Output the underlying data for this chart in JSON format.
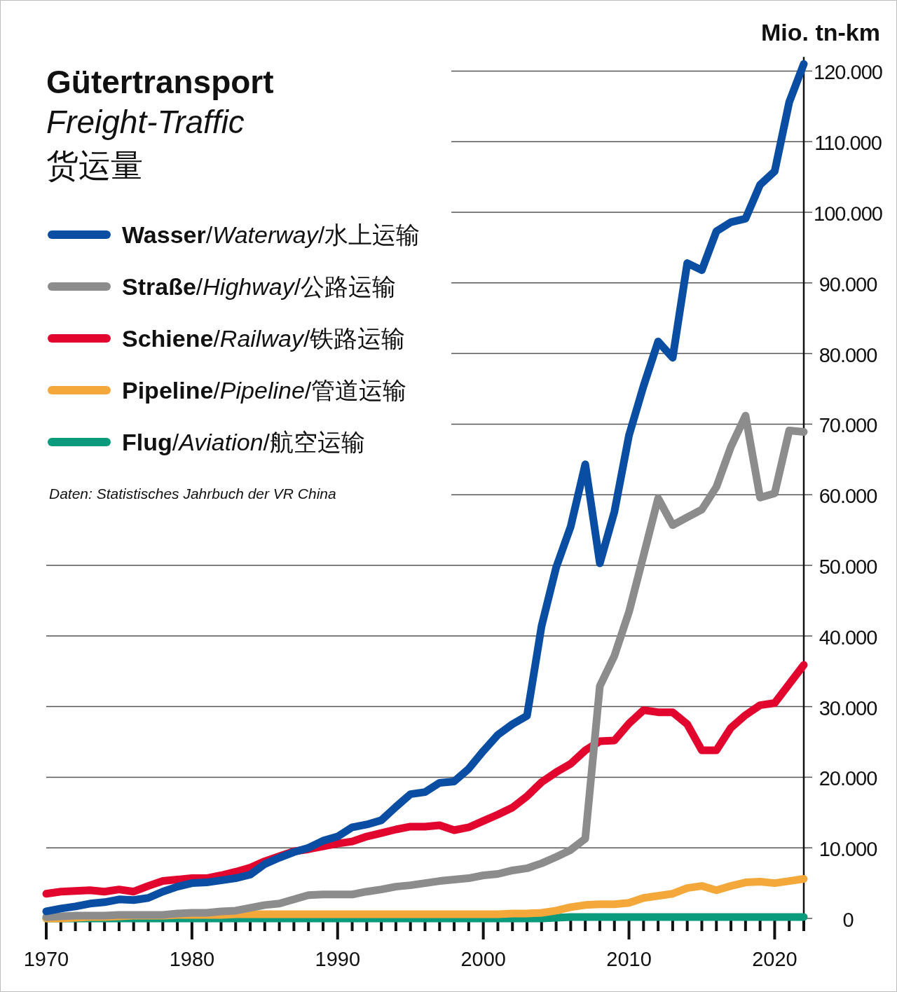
{
  "chart_data": {
    "type": "line",
    "title": "Gütertransport",
    "subtitle": "Freight-Traffic",
    "ylabel": "Mio. tn-km",
    "annotations": [
      "货运量",
      "Daten: Statistisches Jahrbuch der VR China"
    ],
    "x": [
      1970,
      1971,
      1972,
      1973,
      1974,
      1975,
      1976,
      1977,
      1978,
      1979,
      1980,
      1981,
      1982,
      1983,
      1984,
      1985,
      1986,
      1987,
      1988,
      1989,
      1990,
      1991,
      1992,
      1993,
      1994,
      1995,
      1996,
      1997,
      1998,
      1999,
      2000,
      2001,
      2002,
      2003,
      2004,
      2005,
      2006,
      2007,
      2008,
      2009,
      2010,
      2011,
      2012,
      2013,
      2014,
      2015,
      2016,
      2017,
      2018,
      2019,
      2020,
      2021,
      2022
    ],
    "series": [
      {
        "name": "**Wasser**/*Waterway*/水上运输",
        "color": "#0a4ea3",
        "values": [
          1000,
          1400,
          1700,
          2100,
          2300,
          2700,
          2600,
          2900,
          3800,
          4500,
          5000,
          5100,
          5400,
          5700,
          6200,
          7700,
          8600,
          9400,
          10000,
          11000,
          11600,
          12900,
          13300,
          13900,
          15800,
          17600,
          17900,
          19200,
          19400,
          21200,
          23700,
          26000,
          27500,
          28700,
          41400,
          49700,
          55500,
          64300,
          50300,
          57600,
          68400,
          75400,
          81700,
          79400,
          92800,
          91800,
          97300,
          98600,
          99100,
          103900,
          105800,
          115600,
          121000
        ]
      },
      {
        "name": "**Straße**/*Highway*/公路运输",
        "color": "#8c8c8c",
        "values": [
          200,
          300,
          400,
          400,
          400,
          500,
          500,
          500,
          500,
          700,
          800,
          800,
          1000,
          1100,
          1500,
          1900,
          2100,
          2700,
          3300,
          3400,
          3400,
          3400,
          3800,
          4100,
          4500,
          4700,
          5000,
          5300,
          5500,
          5700,
          6100,
          6300,
          6800,
          7100,
          7800,
          8700,
          9700,
          11300,
          32900,
          37200,
          43400,
          51400,
          59500,
          55700,
          56800,
          57900,
          61100,
          66800,
          71200,
          59600,
          60200,
          69100,
          68900
        ]
      },
      {
        "name": "**Schiene**/*Railway*/铁路运输",
        "color": "#e2062f",
        "values": [
          3500,
          3800,
          3900,
          4000,
          3800,
          4100,
          3800,
          4600,
          5300,
          5500,
          5700,
          5700,
          6100,
          6600,
          7200,
          8100,
          8800,
          9500,
          9800,
          10200,
          10600,
          10900,
          11600,
          12100,
          12600,
          13000,
          13000,
          13200,
          12500,
          12900,
          13800,
          14700,
          15700,
          17300,
          19300,
          20700,
          21900,
          23800,
          25100,
          25200,
          27600,
          29500,
          29200,
          29200,
          27500,
          23800,
          23800,
          27000,
          28800,
          30200,
          30500,
          33200,
          35900
        ]
      },
      {
        "name": "**Pipeline**/*Pipeline*/管道运输",
        "color": "#f5a83a",
        "values": [
          0,
          0,
          100,
          200,
          200,
          300,
          400,
          400,
          400,
          500,
          500,
          500,
          500,
          600,
          600,
          600,
          600,
          600,
          600,
          600,
          600,
          600,
          600,
          600,
          600,
          600,
          600,
          600,
          600,
          600,
          600,
          600,
          700,
          700,
          800,
          1100,
          1600,
          1900,
          2000,
          2000,
          2200,
          2900,
          3200,
          3500,
          4300,
          4600,
          4000,
          4600,
          5100,
          5200,
          5000,
          5300,
          5600
        ]
      },
      {
        "name": "**Flug**/*Aviation*/航空运输",
        "color": "#0a9a7c",
        "values": [
          0,
          0,
          0,
          0,
          0,
          0,
          0,
          0,
          0,
          0,
          0,
          0,
          0,
          0,
          0,
          0,
          0,
          0,
          0,
          0,
          0,
          0,
          0,
          0,
          0,
          0,
          0,
          0,
          0,
          0,
          0,
          0,
          0,
          0,
          0,
          100,
          200,
          200,
          200,
          200,
          200,
          200,
          200,
          200,
          200,
          200,
          200,
          200,
          200,
          200,
          200,
          200,
          200
        ]
      }
    ],
    "xlim": [
      1970,
      2022
    ],
    "ylim": [
      0,
      122000
    ],
    "xticks": [
      1970,
      {
        "value": 1971,
        "label": null
      },
      {
        "value": 1972,
        "label": null
      },
      {
        "value": 1973,
        "label": null
      },
      {
        "value": 1974,
        "label": null
      },
      {
        "value": 1975,
        "label": null
      },
      {
        "value": 1976,
        "label": null
      },
      {
        "value": 1977,
        "label": null
      },
      {
        "value": 1978,
        "label": null
      },
      {
        "value": 1979,
        "label": null
      },
      1980,
      {
        "value": 1981,
        "label": null
      },
      {
        "value": 1982,
        "label": null
      },
      {
        "value": 1983,
        "label": null
      },
      {
        "value": 1984,
        "label": null
      },
      {
        "value": 1985,
        "label": null
      },
      {
        "value": 1986,
        "label": null
      },
      {
        "value": 1987,
        "label": null
      },
      {
        "value": 1988,
        "label": null
      },
      {
        "value": 1989,
        "label": null
      },
      1990,
      {
        "value": 1991,
        "label": null
      },
      {
        "value": 1992,
        "label": null
      },
      {
        "value": 1993,
        "label": null
      },
      {
        "value": 1994,
        "label": null
      },
      {
        "value": 1995,
        "label": null
      },
      {
        "value": 1996,
        "label": null
      },
      {
        "value": 1997,
        "label": null
      },
      {
        "value": 1998,
        "label": null
      },
      {
        "value": 1999,
        "label": null
      },
      2000,
      {
        "value": 2001,
        "label": null
      },
      {
        "value": 2002,
        "label": null
      },
      {
        "value": 2003,
        "label": null
      },
      {
        "value": 2004,
        "label": null
      },
      {
        "value": 2005,
        "label": null
      },
      {
        "value": 2006,
        "label": null
      },
      {
        "value": 2007,
        "label": null
      },
      {
        "value": 2008,
        "label": null
      },
      {
        "value": 2009,
        "label": null
      },
      2010,
      {
        "value": 2011,
        "label": null
      },
      {
        "value": 2012,
        "label": null
      },
      {
        "value": 2013,
        "label": null
      },
      {
        "value": 2014,
        "label": null
      },
      {
        "value": 2015,
        "label": null
      },
      {
        "value": 2016,
        "label": null
      },
      {
        "value": 2017,
        "label": null
      },
      {
        "value": 2018,
        "label": null
      },
      {
        "value": 2019,
        "label": null
      },
      2020,
      {
        "value": 2021,
        "label": null
      },
      {
        "value": 2022,
        "label": null
      }
    ],
    "yticks": [
      0,
      {
        "value": 10000,
        "label": "10.000"
      },
      {
        "value": 20000,
        "label": "20.000"
      },
      {
        "value": 30000,
        "label": "30.000"
      },
      {
        "value": 40000,
        "label": "40.000"
      },
      {
        "value": 50000,
        "label": "50.000"
      },
      {
        "value": 60000,
        "label": "60.000"
      },
      {
        "value": 70000,
        "label": "70.000"
      },
      {
        "value": 80000,
        "label": "80.000"
      },
      {
        "value": 90000,
        "label": "90.000"
      },
      {
        "value": 100000,
        "label": "100.000"
      },
      {
        "value": 110000,
        "label": "110.000"
      },
      {
        "value": 120000,
        "label": "120.000"
      }
    ],
    "grid": "y",
    "legend": "top left",
    "marker": "none",
    "line_style": "solid"
  }
}
